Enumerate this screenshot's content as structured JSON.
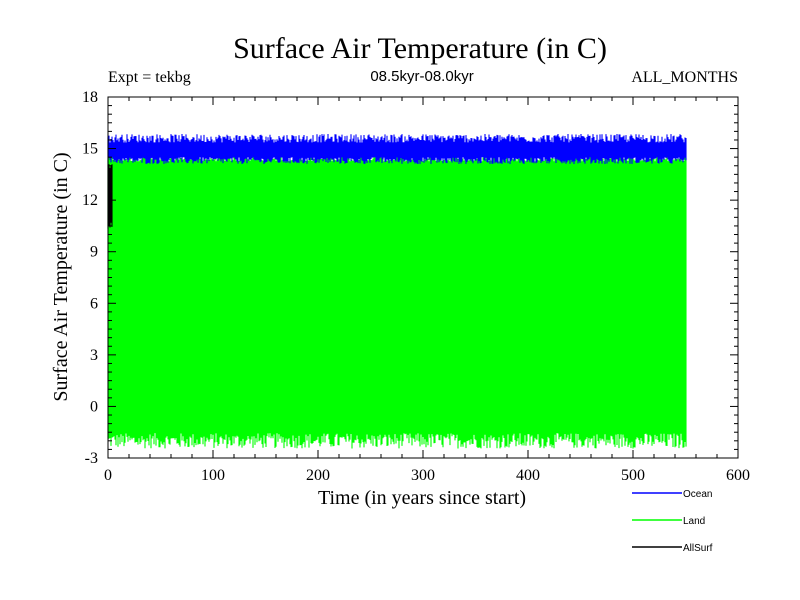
{
  "chart_data": {
    "type": "line",
    "title": "Surface Air Temperature (in C)",
    "subtitle": "08.5kyr-08.0kyr",
    "left_label": "Expt = tekbg",
    "right_label": "ALL_MONTHS",
    "xlabel": "Time (in years since start)",
    "ylabel": "Surface Air Temperature (in C)",
    "xlim": [
      0,
      600
    ],
    "ylim": [
      -3,
      18
    ],
    "x_ticks": [
      0,
      100,
      200,
      300,
      400,
      500,
      600
    ],
    "y_ticks": [
      -3,
      0,
      3,
      6,
      9,
      12,
      15,
      18
    ],
    "x_end": 550,
    "series": [
      {
        "name": "Ocean",
        "color": "#0000ff",
        "band_low": 14.3,
        "band_high": 15.6,
        "description": "seasonal cycle, narrow band"
      },
      {
        "name": "Land",
        "color": "#00ff00",
        "band_low": -2.0,
        "band_high": 14.4,
        "description": "seasonal cycle, wide band"
      },
      {
        "name": "AllSurf",
        "color": "#000000",
        "band_low": 10.5,
        "band_high": 14.0,
        "description": "mostly hidden behind Land"
      }
    ],
    "legend": [
      "Ocean",
      "Land",
      "AllSurf"
    ],
    "legend_position": "bottom-right"
  }
}
